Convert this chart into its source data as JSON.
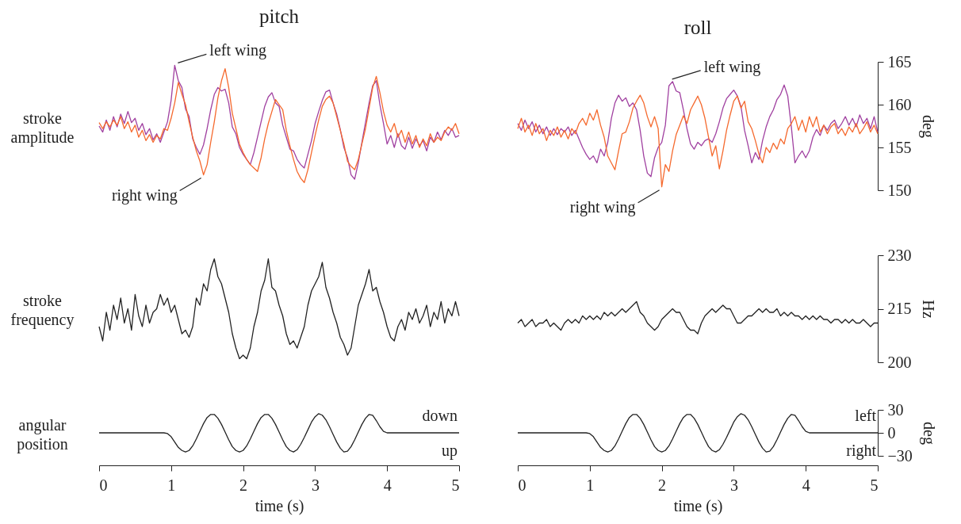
{
  "chart_data": [
    {
      "type": "line",
      "title": "pitch",
      "ylabel": "stroke amplitude",
      "tick_labels": false,
      "xlim": [
        0,
        5
      ],
      "ylim": [
        150,
        165
      ],
      "x": [
        0,
        0.05,
        0.1,
        0.15,
        0.2,
        0.25,
        0.3,
        0.35,
        0.4,
        0.45,
        0.5,
        0.55,
        0.6,
        0.65,
        0.7,
        0.75,
        0.8,
        0.85,
        0.9,
        0.95,
        1,
        1.05,
        1.1,
        1.15,
        1.2,
        1.25,
        1.3,
        1.35,
        1.4,
        1.45,
        1.5,
        1.55,
        1.6,
        1.65,
        1.7,
        1.75,
        1.8,
        1.85,
        1.9,
        1.95,
        2,
        2.05,
        2.1,
        2.15,
        2.2,
        2.25,
        2.3,
        2.35,
        2.4,
        2.45,
        2.5,
        2.55,
        2.6,
        2.65,
        2.7,
        2.75,
        2.8,
        2.85,
        2.9,
        2.95,
        3,
        3.05,
        3.1,
        3.15,
        3.2,
        3.25,
        3.3,
        3.35,
        3.4,
        3.45,
        3.5,
        3.55,
        3.6,
        3.65,
        3.7,
        3.75,
        3.8,
        3.85,
        3.9,
        3.95,
        4,
        4.05,
        4.1,
        4.15,
        4.2,
        4.25,
        4.3,
        4.35,
        4.4,
        4.45,
        4.5,
        4.55,
        4.6,
        4.65,
        4.7,
        4.75,
        4.8,
        4.85,
        4.9,
        4.95,
        5
      ],
      "series": [
        {
          "color": "#a040a0",
          "values": [
            157.5,
            156.8,
            158.2,
            157.0,
            158.6,
            157.4,
            158.9,
            157.8,
            159.2,
            157.9,
            158.4,
            157.0,
            157.8,
            156.5,
            157.2,
            155.9,
            156.6,
            155.6,
            156.8,
            158.0,
            160.5,
            164.6,
            162.8,
            162.0,
            159.5,
            158.6,
            156.0,
            155.0,
            154.2,
            155.3,
            157.2,
            159.4,
            161.2,
            162.0,
            161.6,
            161.8,
            160.2,
            157.4,
            156.6,
            155.0,
            154.2,
            153.6,
            153.0,
            154.4,
            156.2,
            158.0,
            159.8,
            160.9,
            161.4,
            160.2,
            159.8,
            157.6,
            156.2,
            154.8,
            154.6,
            153.6,
            153.0,
            152.6,
            154.2,
            155.8,
            157.8,
            159.2,
            160.5,
            161.5,
            161.7,
            160.2,
            158.9,
            157.1,
            155.0,
            153.8,
            151.8,
            151.3,
            153.2,
            155.6,
            157.9,
            160.2,
            162.2,
            162.8,
            160.0,
            157.8,
            155.4,
            156.4,
            155.0,
            156.6,
            155.2,
            154.8,
            156.2,
            154.9,
            156.0,
            155.2,
            155.8,
            154.6,
            156.2,
            155.6,
            156.8,
            155.9,
            157.0,
            156.4,
            157.2,
            156.2,
            156.4
          ]
        },
        {
          "color": "#f5692d",
          "values": [
            157.9,
            157.2,
            158.0,
            157.4,
            158.2,
            157.6,
            158.6,
            157.2,
            158.0,
            156.8,
            157.6,
            156.2,
            157.0,
            155.8,
            156.5,
            155.6,
            156.4,
            156.0,
            157.2,
            157.0,
            158.4,
            160.2,
            162.6,
            161.2,
            160.0,
            158.0,
            156.2,
            154.6,
            153.4,
            151.8,
            153.0,
            155.6,
            158.0,
            160.8,
            162.8,
            164.2,
            162.0,
            159.0,
            157.2,
            155.4,
            154.4,
            153.6,
            153.0,
            152.6,
            152.2,
            153.8,
            156.0,
            157.8,
            159.2,
            160.6,
            160.0,
            159.4,
            157.0,
            155.2,
            153.6,
            152.2,
            151.4,
            150.9,
            152.4,
            154.4,
            156.4,
            158.2,
            159.8,
            160.6,
            161.0,
            160.2,
            158.6,
            157.0,
            155.4,
            153.4,
            152.8,
            152.4,
            153.6,
            155.4,
            157.2,
            159.6,
            162.0,
            163.3,
            161.4,
            159.2,
            157.6,
            156.8,
            157.8,
            156.2,
            157.0,
            155.6,
            156.8,
            155.4,
            156.4,
            155.0,
            156.0,
            155.2,
            156.6,
            155.6,
            156.2,
            155.8,
            156.8,
            157.4,
            157.0,
            157.8,
            156.6
          ]
        }
      ],
      "annotations": [
        {
          "text": "left wing",
          "x": 1.05,
          "y": 164.6
        },
        {
          "text": "right wing",
          "x": 1.45,
          "y": 151.8
        }
      ]
    },
    {
      "type": "line",
      "title": "roll",
      "ylabel": "deg",
      "tick_labels": "y",
      "xlim": [
        0,
        5
      ],
      "ylim": [
        150,
        165
      ],
      "yticks": [
        150,
        155,
        160,
        165
      ],
      "x": [
        0,
        0.05,
        0.1,
        0.15,
        0.2,
        0.25,
        0.3,
        0.35,
        0.4,
        0.45,
        0.5,
        0.55,
        0.6,
        0.65,
        0.7,
        0.75,
        0.8,
        0.85,
        0.9,
        0.95,
        1,
        1.05,
        1.1,
        1.15,
        1.2,
        1.25,
        1.3,
        1.35,
        1.4,
        1.45,
        1.5,
        1.55,
        1.6,
        1.65,
        1.7,
        1.75,
        1.8,
        1.85,
        1.9,
        1.95,
        2,
        2.05,
        2.1,
        2.15,
        2.2,
        2.25,
        2.3,
        2.35,
        2.4,
        2.45,
        2.5,
        2.55,
        2.6,
        2.65,
        2.7,
        2.75,
        2.8,
        2.85,
        2.9,
        2.95,
        3,
        3.05,
        3.1,
        3.15,
        3.2,
        3.25,
        3.3,
        3.35,
        3.4,
        3.45,
        3.5,
        3.55,
        3.6,
        3.65,
        3.7,
        3.75,
        3.8,
        3.85,
        3.9,
        3.95,
        4,
        4.05,
        4.1,
        4.15,
        4.2,
        4.25,
        4.3,
        4.35,
        4.4,
        4.45,
        4.5,
        4.55,
        4.6,
        4.65,
        4.7,
        4.75,
        4.8,
        4.85,
        4.9,
        4.95,
        5
      ],
      "series": [
        {
          "color": "#a040a0",
          "values": [
            157.8,
            157.0,
            158.2,
            157.2,
            158.0,
            156.8,
            157.6,
            156.6,
            157.4,
            156.4,
            157.2,
            156.5,
            157.2,
            156.8,
            157.4,
            156.4,
            157.0,
            156.0,
            155.0,
            154.2,
            153.6,
            154.0,
            153.2,
            154.8,
            154.0,
            155.6,
            158.4,
            160.2,
            161.1,
            160.4,
            160.8,
            159.8,
            160.2,
            159.4,
            157.0,
            154.0,
            152.0,
            151.6,
            153.8,
            155.0,
            155.6,
            157.6,
            162.2,
            162.7,
            161.6,
            161.4,
            159.4,
            157.2,
            155.4,
            154.8,
            155.6,
            155.2,
            155.8,
            156.0,
            155.6,
            156.6,
            158.0,
            159.6,
            160.7,
            161.2,
            161.7,
            161.0,
            159.8,
            157.0,
            155.2,
            153.2,
            154.4,
            153.6,
            155.8,
            157.4,
            158.6,
            159.4,
            160.6,
            161.2,
            162.3,
            161.0,
            157.4,
            153.2,
            154.0,
            154.6,
            153.8,
            154.6,
            156.2,
            157.1,
            156.4,
            157.6,
            157.0,
            157.8,
            158.2,
            157.2,
            157.8,
            158.6,
            157.6,
            158.4,
            157.4,
            158.8,
            157.8,
            158.4,
            157.2,
            158.6,
            156.8
          ]
        },
        {
          "color": "#f5692d",
          "values": [
            157.2,
            158.4,
            156.8,
            157.6,
            156.4,
            157.8,
            156.6,
            157.2,
            155.8,
            157.0,
            156.4,
            157.4,
            156.2,
            157.0,
            156.0,
            157.2,
            156.6,
            157.8,
            158.4,
            157.6,
            159.0,
            158.2,
            159.4,
            157.6,
            156.2,
            154.0,
            153.2,
            152.4,
            154.6,
            156.6,
            156.8,
            158.0,
            159.6,
            160.4,
            161.1,
            160.2,
            158.6,
            157.4,
            158.6,
            157.2,
            150.4,
            153.0,
            152.2,
            154.6,
            156.5,
            157.6,
            158.7,
            157.8,
            159.4,
            160.2,
            161.0,
            160.0,
            158.4,
            156.2,
            154.0,
            155.2,
            152.5,
            154.6,
            157.0,
            158.8,
            160.4,
            161.0,
            159.6,
            160.4,
            158.0,
            157.2,
            155.8,
            154.2,
            153.2,
            155.0,
            154.4,
            155.5,
            154.8,
            156.0,
            155.4,
            157.2,
            157.8,
            158.6,
            157.0,
            158.2,
            156.8,
            158.6,
            157.4,
            158.6,
            156.8,
            157.6,
            156.6,
            157.4,
            157.8,
            156.6,
            157.2,
            156.4,
            157.4,
            156.8,
            157.8,
            156.6,
            157.2,
            158.0,
            156.8,
            157.6,
            156.6
          ]
        }
      ],
      "annotations": [
        {
          "text": "left wing",
          "x": 2.1,
          "y": 162.7
        },
        {
          "text": "right wing",
          "x": 2.0,
          "y": 150.4
        }
      ]
    },
    {
      "type": "line",
      "ylabel": "stroke frequency",
      "tick_labels": false,
      "xlim": [
        0,
        5
      ],
      "ylim": [
        200,
        230
      ],
      "x": [
        0,
        0.05,
        0.1,
        0.15,
        0.2,
        0.25,
        0.3,
        0.35,
        0.4,
        0.45,
        0.5,
        0.55,
        0.6,
        0.65,
        0.7,
        0.75,
        0.8,
        0.85,
        0.9,
        0.95,
        1,
        1.05,
        1.1,
        1.15,
        1.2,
        1.25,
        1.3,
        1.35,
        1.4,
        1.45,
        1.5,
        1.55,
        1.6,
        1.65,
        1.7,
        1.75,
        1.8,
        1.85,
        1.9,
        1.95,
        2,
        2.05,
        2.1,
        2.15,
        2.2,
        2.25,
        2.3,
        2.35,
        2.4,
        2.45,
        2.5,
        2.55,
        2.6,
        2.65,
        2.7,
        2.75,
        2.8,
        2.85,
        2.9,
        2.95,
        3,
        3.05,
        3.1,
        3.15,
        3.2,
        3.25,
        3.3,
        3.35,
        3.4,
        3.45,
        3.5,
        3.55,
        3.6,
        3.65,
        3.7,
        3.75,
        3.8,
        3.85,
        3.9,
        3.95,
        4,
        4.05,
        4.1,
        4.15,
        4.2,
        4.25,
        4.3,
        4.35,
        4.4,
        4.45,
        4.5,
        4.55,
        4.6,
        4.65,
        4.7,
        4.75,
        4.8,
        4.85,
        4.9,
        4.95,
        5
      ],
      "series": [
        {
          "color": "#222222",
          "values": [
            210,
            206,
            214,
            209,
            216,
            212,
            218,
            211,
            215,
            209,
            219,
            213,
            210,
            216,
            211,
            214,
            215,
            219,
            216,
            218,
            214,
            216,
            212,
            208,
            209,
            207,
            210,
            218,
            216,
            222,
            220,
            226,
            229,
            224,
            222,
            218,
            214,
            208,
            204,
            201,
            202,
            201,
            204,
            210,
            214,
            220,
            223,
            229,
            221,
            220,
            216,
            213,
            208,
            205,
            206,
            204,
            207,
            210,
            216,
            220,
            222,
            224,
            228,
            221,
            218,
            214,
            211,
            207,
            205,
            202,
            204,
            210,
            216,
            219,
            222,
            226,
            220,
            221,
            217,
            214,
            210,
            207,
            206,
            210,
            212,
            209,
            214,
            212,
            215,
            211,
            213,
            216,
            210,
            214,
            212,
            217,
            211,
            215,
            213,
            217,
            213
          ]
        }
      ]
    },
    {
      "type": "line",
      "ylabel": "Hz",
      "tick_labels": "y",
      "xlim": [
        0,
        5
      ],
      "ylim": [
        200,
        230
      ],
      "yticks": [
        200,
        215,
        230
      ],
      "x": [
        0,
        0.05,
        0.1,
        0.15,
        0.2,
        0.25,
        0.3,
        0.35,
        0.4,
        0.45,
        0.5,
        0.55,
        0.6,
        0.65,
        0.7,
        0.75,
        0.8,
        0.85,
        0.9,
        0.95,
        1,
        1.05,
        1.1,
        1.15,
        1.2,
        1.25,
        1.3,
        1.35,
        1.4,
        1.45,
        1.5,
        1.55,
        1.6,
        1.65,
        1.7,
        1.75,
        1.8,
        1.85,
        1.9,
        1.95,
        2,
        2.05,
        2.1,
        2.15,
        2.2,
        2.25,
        2.3,
        2.35,
        2.4,
        2.45,
        2.5,
        2.55,
        2.6,
        2.65,
        2.7,
        2.75,
        2.8,
        2.85,
        2.9,
        2.95,
        3,
        3.05,
        3.1,
        3.15,
        3.2,
        3.25,
        3.3,
        3.35,
        3.4,
        3.45,
        3.5,
        3.55,
        3.6,
        3.65,
        3.7,
        3.75,
        3.8,
        3.85,
        3.9,
        3.95,
        4,
        4.05,
        4.1,
        4.15,
        4.2,
        4.25,
        4.3,
        4.35,
        4.4,
        4.45,
        4.5,
        4.55,
        4.6,
        4.65,
        4.7,
        4.75,
        4.8,
        4.85,
        4.9,
        4.95,
        5
      ],
      "series": [
        {
          "color": "#222222",
          "values": [
            211,
            212,
            210,
            211,
            212,
            210,
            211,
            211,
            212,
            210,
            211,
            210,
            209,
            211,
            212,
            211,
            212,
            211,
            213,
            212,
            213,
            212,
            213,
            212,
            214,
            213,
            214,
            213,
            214,
            215,
            214,
            215,
            216,
            217,
            214,
            213,
            211,
            210,
            209,
            210,
            212,
            213,
            214,
            215,
            214,
            214,
            212,
            210,
            209,
            209,
            208,
            211,
            213,
            214,
            215,
            214,
            215,
            216,
            215,
            215,
            213,
            211,
            211,
            212,
            213,
            213,
            214,
            215,
            214,
            215,
            214,
            214,
            215,
            213,
            214,
            213,
            214,
            213,
            213,
            212,
            213,
            212,
            213,
            212,
            213,
            212,
            212,
            211,
            212,
            212,
            211,
            212,
            211,
            212,
            211,
            211,
            212,
            211,
            210,
            211,
            211
          ]
        }
      ]
    },
    {
      "type": "line",
      "ylabel": "angular position",
      "xlabel": "time (s)",
      "tick_labels": "x",
      "xlim": [
        0,
        5
      ],
      "ylim": [
        -30,
        30
      ],
      "xticks": [
        0,
        1,
        2,
        3,
        4,
        5
      ],
      "x": [
        0,
        0.05,
        0.1,
        0.15,
        0.2,
        0.25,
        0.3,
        0.35,
        0.4,
        0.45,
        0.5,
        0.55,
        0.6,
        0.65,
        0.7,
        0.75,
        0.8,
        0.85,
        0.9,
        0.95,
        1,
        1.05,
        1.1,
        1.15,
        1.2,
        1.25,
        1.3,
        1.35,
        1.4,
        1.45,
        1.5,
        1.55,
        1.6,
        1.65,
        1.7,
        1.75,
        1.8,
        1.85,
        1.9,
        1.95,
        2,
        2.05,
        2.1,
        2.15,
        2.2,
        2.25,
        2.3,
        2.35,
        2.4,
        2.45,
        2.5,
        2.55,
        2.6,
        2.65,
        2.7,
        2.75,
        2.8,
        2.85,
        2.9,
        2.95,
        3,
        3.05,
        3.1,
        3.15,
        3.2,
        3.25,
        3.3,
        3.35,
        3.4,
        3.45,
        3.5,
        3.55,
        3.6,
        3.65,
        3.7,
        3.75,
        3.8,
        3.85,
        3.9,
        3.95,
        4,
        4.05,
        4.1,
        4.15,
        4.2,
        4.25,
        4.3,
        4.35,
        4.4,
        4.45,
        4.5,
        4.55,
        4.6,
        4.65,
        4.7,
        4.75,
        4.8,
        4.85,
        4.9,
        4.95,
        5
      ],
      "series": [
        {
          "color": "#222222",
          "values": [
            0,
            0,
            0,
            0,
            0,
            0,
            0,
            0,
            0,
            0,
            0,
            0,
            0,
            0,
            0,
            0,
            0,
            0,
            0,
            -1,
            -5,
            -12,
            -19,
            -23,
            -25,
            -23,
            -17,
            -8,
            2,
            12,
            20,
            24,
            24,
            19,
            11,
            1,
            -9,
            -18,
            -23,
            -25,
            -23,
            -17,
            -8,
            2,
            12,
            20,
            24,
            24,
            19,
            11,
            1,
            -9,
            -18,
            -23,
            -25,
            -22,
            -15,
            -6,
            4,
            14,
            21,
            25,
            23,
            17,
            8,
            -2,
            -12,
            -20,
            -25,
            -24,
            -18,
            -9,
            1,
            11,
            19,
            24,
            23,
            16,
            8,
            2,
            0,
            0,
            0,
            0,
            0,
            0,
            0,
            0,
            0,
            0,
            0,
            0,
            0,
            0,
            0,
            0,
            0,
            0,
            0,
            0,
            0
          ]
        }
      ],
      "annotations": [
        "down",
        "up"
      ]
    },
    {
      "type": "line",
      "ylabel": "deg",
      "xlabel": "time (s)",
      "xlim": [
        0,
        5
      ],
      "ylim": [
        -30,
        30
      ],
      "xticks": [
        0,
        1,
        2,
        3,
        4,
        5
      ],
      "yticks": [
        {
          "value": -30,
          "label": "−30"
        },
        0,
        30
      ],
      "x": [
        0,
        0.05,
        0.1,
        0.15,
        0.2,
        0.25,
        0.3,
        0.35,
        0.4,
        0.45,
        0.5,
        0.55,
        0.6,
        0.65,
        0.7,
        0.75,
        0.8,
        0.85,
        0.9,
        0.95,
        1,
        1.05,
        1.1,
        1.15,
        1.2,
        1.25,
        1.3,
        1.35,
        1.4,
        1.45,
        1.5,
        1.55,
        1.6,
        1.65,
        1.7,
        1.75,
        1.8,
        1.85,
        1.9,
        1.95,
        2,
        2.05,
        2.1,
        2.15,
        2.2,
        2.25,
        2.3,
        2.35,
        2.4,
        2.45,
        2.5,
        2.55,
        2.6,
        2.65,
        2.7,
        2.75,
        2.8,
        2.85,
        2.9,
        2.95,
        3,
        3.05,
        3.1,
        3.15,
        3.2,
        3.25,
        3.3,
        3.35,
        3.4,
        3.45,
        3.5,
        3.55,
        3.6,
        3.65,
        3.7,
        3.75,
        3.8,
        3.85,
        3.9,
        3.95,
        4,
        4.05,
        4.1,
        4.15,
        4.2,
        4.25,
        4.3,
        4.35,
        4.4,
        4.45,
        4.5,
        4.55,
        4.6,
        4.65,
        4.7,
        4.75,
        4.8,
        4.85,
        4.9,
        4.95,
        5
      ],
      "series": [
        {
          "color": "#222222",
          "values": [
            0,
            0,
            0,
            0,
            0,
            0,
            0,
            0,
            0,
            0,
            0,
            0,
            0,
            0,
            0,
            0,
            0,
            0,
            0,
            0,
            -1,
            -5,
            -12,
            -19,
            -23,
            -25,
            -23,
            -17,
            -8,
            2,
            12,
            20,
            24,
            24,
            19,
            11,
            1,
            -9,
            -18,
            -23,
            -25,
            -23,
            -17,
            -8,
            2,
            12,
            20,
            24,
            24,
            19,
            11,
            1,
            -9,
            -18,
            -23,
            -25,
            -22,
            -15,
            -6,
            4,
            14,
            21,
            25,
            23,
            17,
            8,
            -2,
            -12,
            -20,
            -25,
            -24,
            -18,
            -9,
            1,
            11,
            19,
            24,
            23,
            16,
            8,
            2,
            0,
            0,
            0,
            0,
            0,
            0,
            0,
            0,
            0,
            0,
            0,
            0,
            0,
            0,
            0,
            0,
            0,
            0,
            0,
            0
          ]
        }
      ],
      "annotations": [
        "left",
        "right"
      ]
    }
  ]
}
